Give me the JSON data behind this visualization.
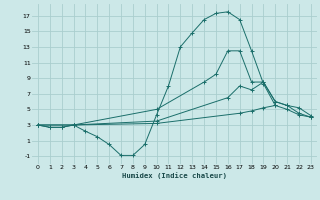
{
  "xlabel": "Humidex (Indice chaleur)",
  "bg_color": "#cce8e8",
  "grid_color": "#aacece",
  "line_color": "#1a6e6a",
  "xlim": [
    -0.5,
    23.5
  ],
  "ylim": [
    -2.0,
    18.5
  ],
  "xticks": [
    0,
    1,
    2,
    3,
    4,
    5,
    6,
    7,
    8,
    9,
    10,
    11,
    12,
    13,
    14,
    15,
    16,
    17,
    18,
    19,
    20,
    21,
    22,
    23
  ],
  "yticks": [
    -1,
    1,
    3,
    5,
    7,
    9,
    11,
    13,
    15,
    17
  ],
  "s1_x": [
    0,
    1,
    2,
    3,
    4,
    5,
    6,
    7,
    8,
    9,
    10,
    11,
    12,
    13,
    14,
    15,
    16,
    17,
    18,
    19,
    20
  ],
  "s1_y": [
    3.0,
    2.7,
    2.7,
    3.0,
    2.2,
    1.5,
    0.5,
    -0.9,
    -0.9,
    0.5,
    4.3,
    8.0,
    13.0,
    14.8,
    16.5,
    17.3,
    17.5,
    16.5,
    12.5,
    8.3,
    5.5
  ],
  "s2_x": [
    0,
    1,
    2,
    3,
    10,
    14,
    15,
    16,
    17,
    18,
    19,
    20,
    21,
    22,
    23
  ],
  "s2_y": [
    3.0,
    2.7,
    2.7,
    3.0,
    5.0,
    8.5,
    9.5,
    12.5,
    12.5,
    8.5,
    8.5,
    6.0,
    5.5,
    5.2,
    4.2
  ],
  "s3_x": [
    0,
    3,
    10,
    16,
    17,
    18,
    19,
    20,
    21,
    22,
    23
  ],
  "s3_y": [
    3.0,
    3.0,
    3.5,
    6.5,
    8.0,
    7.5,
    8.5,
    6.0,
    5.5,
    4.5,
    4.0
  ],
  "s4_x": [
    0,
    3,
    10,
    17,
    18,
    19,
    20,
    21,
    22,
    23
  ],
  "s4_y": [
    3.0,
    3.0,
    3.2,
    4.5,
    4.8,
    5.2,
    5.5,
    5.0,
    4.3,
    4.0
  ]
}
